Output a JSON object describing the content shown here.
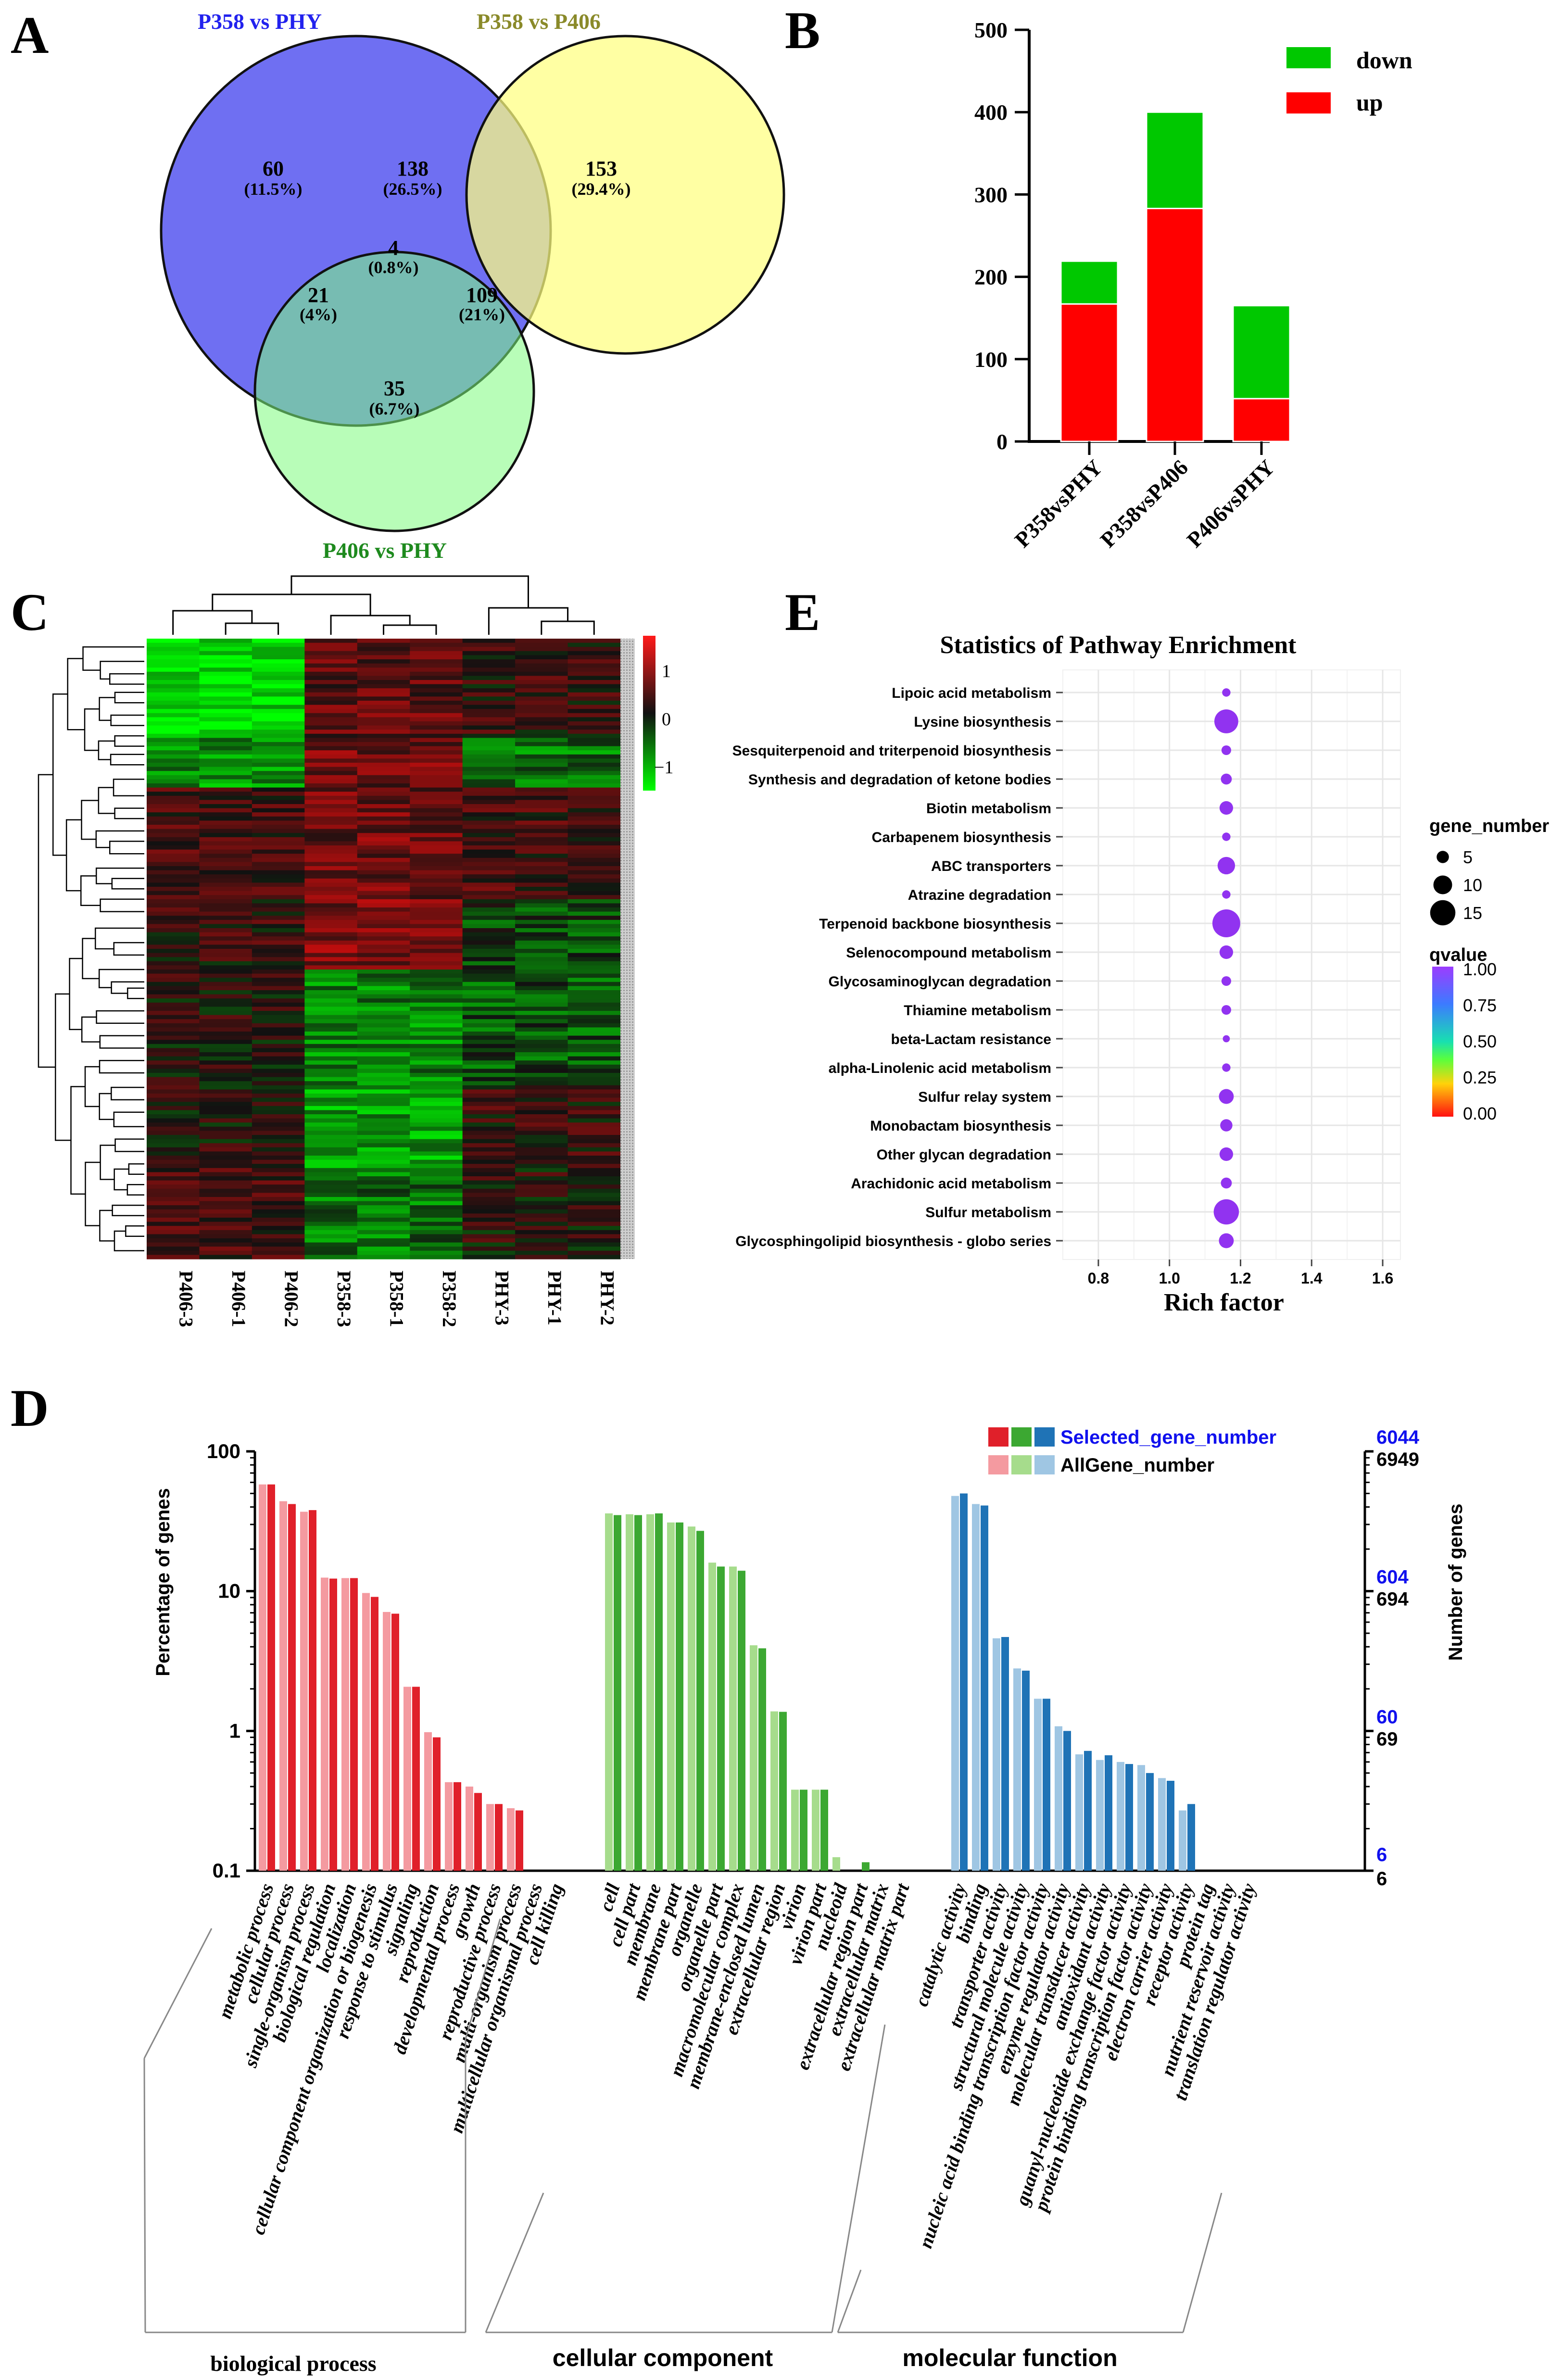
{
  "panel_letters": {
    "a": "A",
    "b": "B",
    "c": "C",
    "d": "D",
    "e": "E"
  },
  "colors": {
    "venn_blue": "#6f6ff2",
    "venn_yellow": "#ffff80",
    "venn_green": "#7dfb7d",
    "title_blue": "#2222ee",
    "title_olive": "#8a8a2a",
    "title_green": "#1e8a1e",
    "up": "#ff0000",
    "down": "#00c800",
    "bp_dark": "#e0202a",
    "bp_light": "#f49aa0",
    "cc_dark": "#3ca832",
    "cc_light": "#a6dc8c",
    "mf_dark": "#1f73b6",
    "mf_light": "#9fc6e3",
    "selected_label": "#1010ee"
  },
  "chart_data": [
    {
      "type": "venn",
      "sets": [
        "P358 vs PHY",
        "P358 vs P406",
        "P406 vs PHY"
      ],
      "regions": [
        {
          "id": "only_a",
          "count": "60",
          "pct": "(11.5%)"
        },
        {
          "id": "a_b",
          "count": "138",
          "pct": "(26.5%)"
        },
        {
          "id": "only_b",
          "count": "153",
          "pct": "(29.4%)"
        },
        {
          "id": "abc",
          "count": "4",
          "pct": "(0.8%)"
        },
        {
          "id": "a_c",
          "count": "21",
          "pct": "(4%)"
        },
        {
          "id": "b_c",
          "count": "109",
          "pct": "(21%)"
        },
        {
          "id": "only_c",
          "count": "35",
          "pct": "(6.7%)"
        }
      ]
    },
    {
      "type": "bar",
      "stacked": true,
      "categories": [
        "P358vsPHY",
        "P358vsP406",
        "P406vsPHY"
      ],
      "series": [
        {
          "name": "up",
          "values": [
            167,
            283,
            52
          ]
        },
        {
          "name": "down",
          "values": [
            52,
            117,
            113
          ]
        }
      ],
      "ylim": [
        0,
        500
      ],
      "yticks": [
        "0",
        "100",
        "200",
        "300",
        "400",
        "500"
      ],
      "legend": [
        "down",
        "up"
      ]
    },
    {
      "type": "heatmap",
      "columns": [
        "P406-3",
        "P406-1",
        "P406-2",
        "P358-3",
        "P358-1",
        "P358-2",
        "PHY-3",
        "PHY-1",
        "PHY-2"
      ],
      "colorbar_ticks": [
        "1",
        "0",
        "−1"
      ],
      "range": [
        -1.5,
        1.5
      ]
    },
    {
      "type": "bar",
      "title": "",
      "ylabel": "Percentage of genes",
      "y2label": "Number of genes",
      "scale": "log",
      "ylim": [
        0.1,
        100
      ],
      "yticks": [
        "100",
        "10",
        "1",
        "0.1"
      ],
      "right_ticks_selected": [
        "6044",
        "604",
        "60",
        "6"
      ],
      "right_ticks_all": [
        "6949",
        "694",
        "69",
        "6"
      ],
      "legend": [
        "Selected_gene_number",
        "AllGene_number"
      ],
      "groups": [
        "biological process",
        "cellular component",
        "molecular function"
      ],
      "categories": [
        {
          "name": "metabolic process",
          "group": 0,
          "all": 58,
          "sel": 58
        },
        {
          "name": "cellular process",
          "group": 0,
          "all": 44,
          "sel": 42
        },
        {
          "name": "single-organism process",
          "group": 0,
          "all": 37,
          "sel": 38
        },
        {
          "name": "biological regulation",
          "group": 0,
          "all": 12.5,
          "sel": 12.3
        },
        {
          "name": "localization",
          "group": 0,
          "all": 12.4,
          "sel": 12.4
        },
        {
          "name": "cellular component organization or biogenesis",
          "group": 0,
          "all": 9.7,
          "sel": 9.1
        },
        {
          "name": "response to stimulus",
          "group": 0,
          "all": 7.1,
          "sel": 6.9
        },
        {
          "name": "signaling",
          "group": 0,
          "all": 2.07,
          "sel": 2.07
        },
        {
          "name": "reproduction",
          "group": 0,
          "all": 0.98,
          "sel": 0.9
        },
        {
          "name": "developmental process",
          "group": 0,
          "all": 0.43,
          "sel": 0.43
        },
        {
          "name": "growth",
          "group": 0,
          "all": 0.4,
          "sel": 0.36
        },
        {
          "name": "reproductive process",
          "group": 0,
          "all": 0.3,
          "sel": 0.3
        },
        {
          "name": "multi-organism process",
          "group": 0,
          "all": 0.28,
          "sel": 0.27
        },
        {
          "name": "multicellular organismal process",
          "group": 0,
          "all": 0.0,
          "sel": 0.0
        },
        {
          "name": "cell killing",
          "group": 0,
          "all": 0.0,
          "sel": 0.0
        },
        {
          "name": "cell",
          "group": 1,
          "all": 36,
          "sel": 35
        },
        {
          "name": "cell part",
          "group": 1,
          "all": 35.5,
          "sel": 35
        },
        {
          "name": "membrane",
          "group": 1,
          "all": 35.5,
          "sel": 36
        },
        {
          "name": "membrane part",
          "group": 1,
          "all": 31,
          "sel": 31
        },
        {
          "name": "organelle",
          "group": 1,
          "all": 29,
          "sel": 27
        },
        {
          "name": "organelle part",
          "group": 1,
          "all": 16,
          "sel": 15
        },
        {
          "name": "macromolecular complex",
          "group": 1,
          "all": 15,
          "sel": 14
        },
        {
          "name": "membrane-enclosed lumen",
          "group": 1,
          "all": 4.1,
          "sel": 3.9
        },
        {
          "name": "extracellular region",
          "group": 1,
          "all": 1.38,
          "sel": 1.37
        },
        {
          "name": "virion",
          "group": 1,
          "all": 0.38,
          "sel": 0.38
        },
        {
          "name": "virion part",
          "group": 1,
          "all": 0.38,
          "sel": 0.38
        },
        {
          "name": "nucleoid",
          "group": 1,
          "all": 0.125,
          "sel": 0.0
        },
        {
          "name": "extracellular region part",
          "group": 1,
          "all": 0.0,
          "sel": 0.115
        },
        {
          "name": "extracellular matrix",
          "group": 1,
          "all": 0.0,
          "sel": 0.0
        },
        {
          "name": "extracellular matrix part",
          "group": 1,
          "all": 0.0,
          "sel": 0.0
        },
        {
          "name": "catalytic activity",
          "group": 2,
          "all": 48,
          "sel": 50
        },
        {
          "name": "binding",
          "group": 2,
          "all": 42,
          "sel": 41
        },
        {
          "name": "transporter activity",
          "group": 2,
          "all": 4.6,
          "sel": 4.7
        },
        {
          "name": "structural molecule activity",
          "group": 2,
          "all": 2.8,
          "sel": 2.7
        },
        {
          "name": "nucleic acid binding transcription factor activity",
          "group": 2,
          "all": 1.7,
          "sel": 1.7
        },
        {
          "name": "enzyme regulator activity",
          "group": 2,
          "all": 1.08,
          "sel": 1.0
        },
        {
          "name": "molecular transducer activity",
          "group": 2,
          "all": 0.68,
          "sel": 0.72
        },
        {
          "name": "antioxidant activity",
          "group": 2,
          "all": 0.62,
          "sel": 0.67
        },
        {
          "name": "guanyl-nucleotide exchange factor activity",
          "group": 2,
          "all": 0.6,
          "sel": 0.58
        },
        {
          "name": "protein binding transcription factor activity",
          "group": 2,
          "all": 0.57,
          "sel": 0.5
        },
        {
          "name": "electron carrier activity",
          "group": 2,
          "all": 0.46,
          "sel": 0.44
        },
        {
          "name": "receptor activity",
          "group": 2,
          "all": 0.27,
          "sel": 0.3
        },
        {
          "name": "protein tag",
          "group": 2,
          "all": 0.0,
          "sel": 0.0
        },
        {
          "name": "nutrient reservoir activity",
          "group": 2,
          "all": 0.0,
          "sel": 0.0
        },
        {
          "name": "translation regulator activity",
          "group": 2,
          "all": 0.0,
          "sel": 0.0
        }
      ]
    },
    {
      "type": "scatter",
      "title": "Statistics of Pathway Enrichment",
      "xlabel": "Rich factor",
      "xlim": [
        0.7,
        1.65
      ],
      "xticks": [
        0.8,
        1.0,
        1.2,
        1.4,
        1.6
      ],
      "xtick_labels": [
        "0.8",
        "1.0",
        "1.2",
        "1.4",
        "1.6"
      ],
      "size_legend_title": "gene_number",
      "size_legend": [
        {
          "label": "5",
          "value": 5
        },
        {
          "label": "10",
          "value": 10
        },
        {
          "label": "15",
          "value": 15
        }
      ],
      "color_legend_title": "qvalue",
      "color_ticks": [
        "1.00",
        "0.75",
        "0.50",
        "0.25",
        "0.00"
      ],
      "points": [
        {
          "pathway": "Lipoic acid metabolism",
          "rich": 1.16,
          "genes": 2,
          "q": 1.0
        },
        {
          "pathway": "Lysine biosynthesis",
          "rich": 1.16,
          "genes": 14,
          "q": 1.0
        },
        {
          "pathway": "Sesquiterpenoid and triterpenoid biosynthesis",
          "rich": 1.16,
          "genes": 3,
          "q": 1.0
        },
        {
          "pathway": "Synthesis and degradation of ketone bodies",
          "rich": 1.16,
          "genes": 4,
          "q": 1.0
        },
        {
          "pathway": "Biotin metabolism",
          "rich": 1.16,
          "genes": 6,
          "q": 1.0
        },
        {
          "pathway": "Carbapenem biosynthesis",
          "rich": 1.16,
          "genes": 2,
          "q": 1.0
        },
        {
          "pathway": "ABC transporters",
          "rich": 1.16,
          "genes": 9,
          "q": 1.0
        },
        {
          "pathway": "Atrazine degradation",
          "rich": 1.16,
          "genes": 2,
          "q": 1.0
        },
        {
          "pathway": "Terpenoid backbone biosynthesis",
          "rich": 1.16,
          "genes": 17,
          "q": 1.0
        },
        {
          "pathway": "Selenocompound metabolism",
          "rich": 1.16,
          "genes": 6,
          "q": 1.0
        },
        {
          "pathway": "Glycosaminoglycan degradation",
          "rich": 1.16,
          "genes": 3,
          "q": 1.0
        },
        {
          "pathway": "Thiamine metabolism",
          "rich": 1.16,
          "genes": 3,
          "q": 1.0
        },
        {
          "pathway": "beta-Lactam resistance",
          "rich": 1.16,
          "genes": 1,
          "q": 1.0
        },
        {
          "pathway": "alpha-Linolenic acid metabolism",
          "rich": 1.16,
          "genes": 2,
          "q": 1.0
        },
        {
          "pathway": "Sulfur relay system",
          "rich": 1.16,
          "genes": 7,
          "q": 1.0
        },
        {
          "pathway": "Monobactam biosynthesis",
          "rich": 1.16,
          "genes": 5,
          "q": 1.0
        },
        {
          "pathway": "Other glycan degradation",
          "rich": 1.16,
          "genes": 6,
          "q": 1.0
        },
        {
          "pathway": "Arachidonic acid metabolism",
          "rich": 1.16,
          "genes": 4,
          "q": 1.0
        },
        {
          "pathway": "Sulfur metabolism",
          "rich": 1.16,
          "genes": 15,
          "q": 1.0
        },
        {
          "pathway": "Glycosphingolipid biosynthesis - globo series",
          "rich": 1.16,
          "genes": 7,
          "q": 1.0
        }
      ]
    }
  ]
}
